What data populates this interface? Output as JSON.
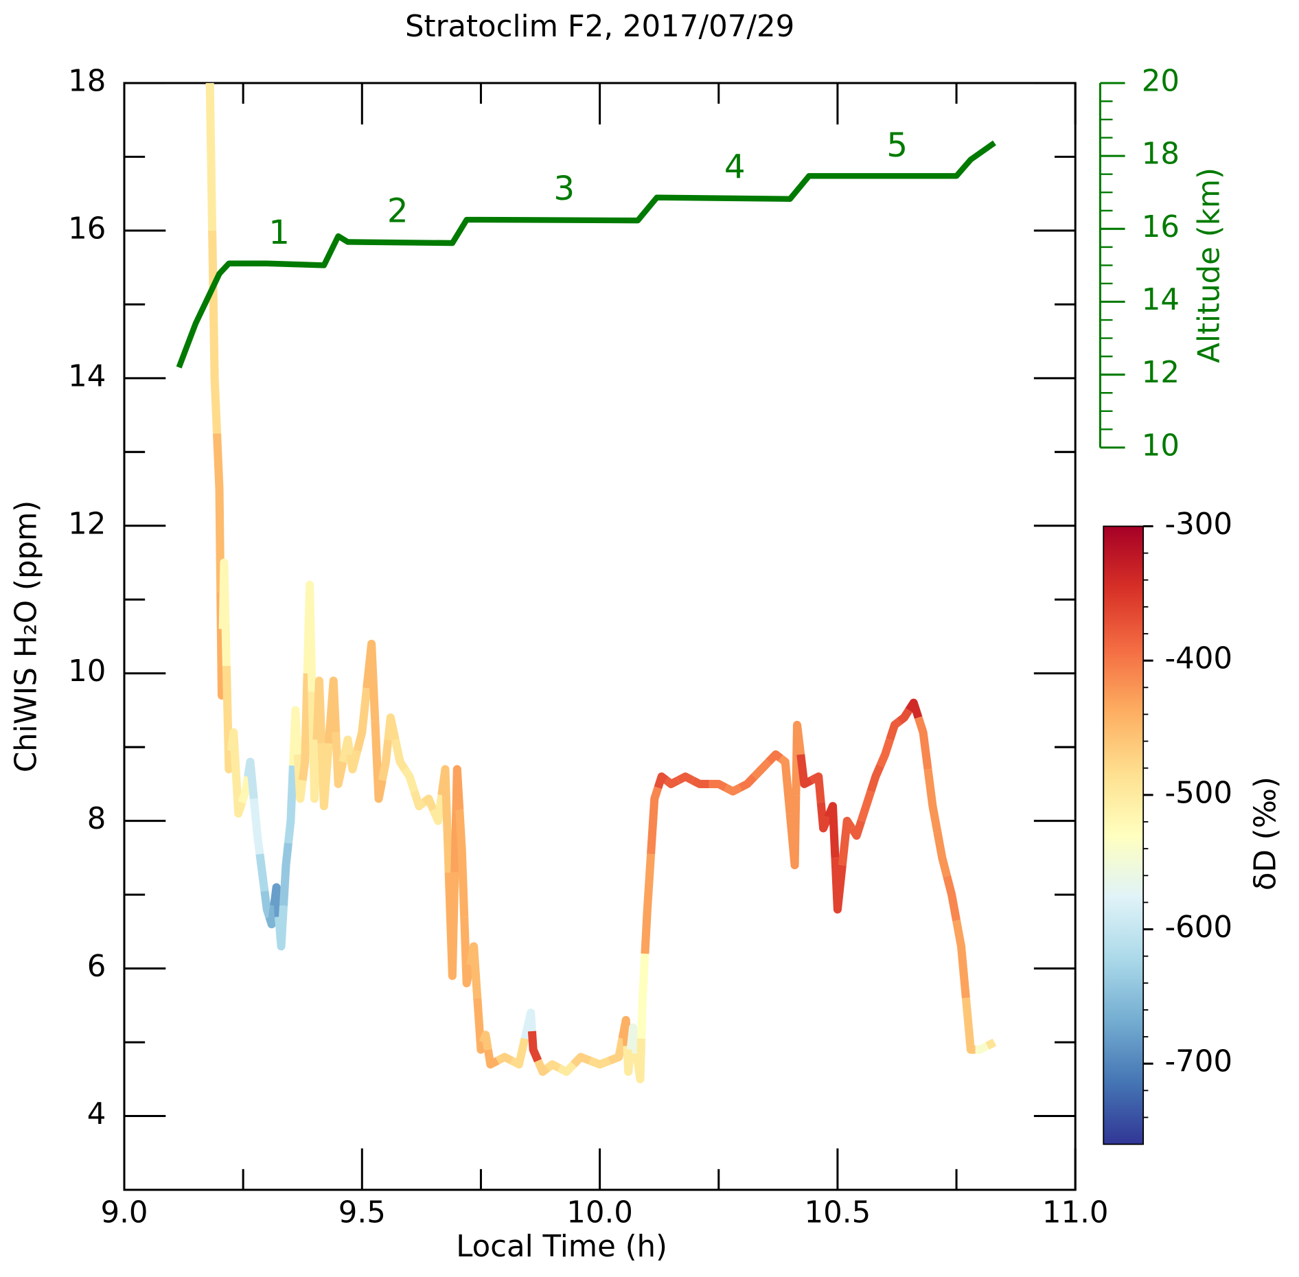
{
  "chart_data": {
    "type": "line",
    "title": "Stratoclim F2, 2017/07/29",
    "xlabel": "Local Time (h)",
    "ylabel": "ChiWIS H₂O (ppm)",
    "y2label": "Altitude (km)",
    "colorbar_label": "δD (‰)",
    "xlim": [
      9.0,
      11.0
    ],
    "xticks": [
      {
        "value": 9.0,
        "label": "9.0"
      },
      {
        "value": 9.5,
        "label": "9.5"
      },
      {
        "value": 10.0,
        "label": "10.0"
      },
      {
        "value": 10.5,
        "label": "10.5"
      },
      {
        "value": 11.0,
        "label": "11.0"
      }
    ],
    "xminor_ticks": [
      9.25,
      9.75,
      10.25,
      10.75
    ],
    "ylim": [
      3,
      18
    ],
    "yticks": [
      4,
      6,
      8,
      10,
      12,
      14,
      16,
      18
    ],
    "yminor_ticks": [
      3,
      5,
      7,
      9,
      11,
      13,
      15,
      17
    ],
    "y2lim": [
      10,
      20
    ],
    "y2ticks": [
      10,
      12,
      14,
      16,
      18,
      20
    ],
    "y2minor_ticks": [
      10.5,
      11,
      11.5,
      12.5,
      13,
      13.5,
      14.5,
      15,
      15.5,
      16.5,
      17,
      17.5,
      18.5,
      19,
      19.5
    ],
    "clim": [
      -760,
      -300
    ],
    "cticks": [
      -300,
      -400,
      -500,
      -600,
      -700
    ],
    "cminor_ticks": [
      -320,
      -340,
      -360,
      -380,
      -420,
      -440,
      -460,
      -480,
      -520,
      -540,
      -560,
      -580,
      -620,
      -640,
      -660,
      -680,
      -720,
      -740
    ],
    "colormap": [
      "#313695",
      "#4575b4",
      "#74add1",
      "#abd9e9",
      "#e0f3f8",
      "#ffffbf",
      "#fee090",
      "#fdae61",
      "#f46d43",
      "#d73027",
      "#a50026"
    ],
    "annotations": [
      "1",
      "2",
      "3",
      "4",
      "5"
    ],
    "series": [
      {
        "x": [
          9.18,
          9.19,
          9.2,
          9.205,
          9.21,
          9.22,
          9.23,
          9.24,
          9.255,
          9.265,
          9.28,
          9.29,
          9.3,
          9.31,
          9.32,
          9.33,
          9.34,
          9.35,
          9.36,
          9.37,
          9.38,
          9.39,
          9.4,
          9.41,
          9.42,
          9.44,
          9.45,
          9.47,
          9.48,
          9.5,
          9.52,
          9.535,
          9.55,
          9.56,
          9.58,
          9.6,
          9.62,
          9.64,
          9.66,
          9.675,
          9.69,
          9.7,
          9.71,
          9.72,
          9.735,
          9.75,
          9.76,
          9.77,
          9.8,
          9.83,
          9.855,
          9.86,
          9.88,
          9.9,
          9.93,
          9.96,
          10.0,
          10.04,
          10.055,
          10.06,
          10.07,
          10.085,
          10.09,
          10.1,
          10.115,
          10.13,
          10.15,
          10.18,
          10.21,
          10.25,
          10.28,
          10.31,
          10.34,
          10.37,
          10.39,
          10.41,
          10.415,
          10.43,
          10.46,
          10.47,
          10.49,
          10.5,
          10.52,
          10.54,
          10.56,
          10.58,
          10.6,
          10.62,
          10.64,
          10.66,
          10.68,
          10.7,
          10.72,
          10.74,
          10.76,
          10.78,
          10.8,
          10.83
        ],
        "values": [
          18,
          14,
          12.5,
          9.7,
          11.5,
          8.7,
          9.2,
          8.1,
          8.4,
          8.8,
          7.8,
          7.3,
          6.8,
          6.6,
          7.1,
          6.3,
          7.4,
          8.0,
          9.5,
          8.3,
          8.8,
          11.2,
          8.3,
          9.9,
          8.2,
          9.9,
          8.5,
          9.1,
          8.7,
          9.2,
          10.4,
          8.3,
          8.8,
          9.4,
          8.8,
          8.6,
          8.2,
          8.3,
          8.0,
          8.7,
          5.9,
          8.7,
          7.6,
          5.8,
          6.3,
          4.9,
          5.1,
          4.7,
          4.8,
          4.7,
          5.4,
          4.9,
          4.6,
          4.7,
          4.6,
          4.8,
          4.7,
          4.8,
          5.3,
          4.6,
          5.2,
          4.5,
          5.6,
          6.8,
          8.3,
          8.6,
          8.5,
          8.6,
          8.5,
          8.5,
          8.4,
          8.5,
          8.7,
          8.9,
          8.8,
          7.4,
          9.3,
          8.5,
          8.6,
          7.9,
          8.2,
          6.8,
          8.0,
          7.8,
          8.2,
          8.6,
          8.9,
          9.3,
          9.4,
          9.6,
          9.2,
          8.2,
          7.5,
          7.0,
          6.3,
          4.9,
          4.9,
          5.0
        ],
        "color_values": [
          -500,
          -480,
          -450,
          -440,
          -520,
          -480,
          -500,
          -500,
          -520,
          -600,
          -580,
          -620,
          -640,
          -660,
          -680,
          -620,
          -640,
          -620,
          -520,
          -500,
          -470,
          -520,
          -500,
          -470,
          -480,
          -460,
          -470,
          -490,
          -480,
          -470,
          -450,
          -450,
          -470,
          -480,
          -490,
          -500,
          -490,
          -480,
          -500,
          -460,
          -440,
          -430,
          -440,
          -440,
          -450,
          -440,
          -460,
          -440,
          -470,
          -480,
          -580,
          -360,
          -470,
          -480,
          -500,
          -470,
          -480,
          -470,
          -440,
          -500,
          -560,
          -500,
          -530,
          -430,
          -410,
          -370,
          -380,
          -380,
          -380,
          -400,
          -410,
          -400,
          -410,
          -400,
          -420,
          -420,
          -420,
          -360,
          -370,
          -360,
          -350,
          -360,
          -380,
          -380,
          -390,
          -380,
          -390,
          -380,
          -370,
          -340,
          -410,
          -420,
          -420,
          -410,
          -430,
          -460,
          -540,
          -490
        ]
      },
      {
        "axis": "y2",
        "color": "#007a00",
        "x": [
          9.115,
          9.15,
          9.2,
          9.22,
          9.3,
          9.42,
          9.45,
          9.47,
          9.69,
          9.72,
          9.75,
          10.08,
          10.12,
          10.4,
          10.44,
          10.75,
          10.78,
          10.83
        ],
        "values": [
          12.2,
          13.4,
          14.77,
          15.05,
          15.05,
          15.0,
          15.8,
          15.64,
          15.61,
          16.25,
          16.25,
          16.23,
          16.86,
          16.82,
          17.45,
          17.45,
          17.9,
          18.36
        ]
      }
    ]
  }
}
